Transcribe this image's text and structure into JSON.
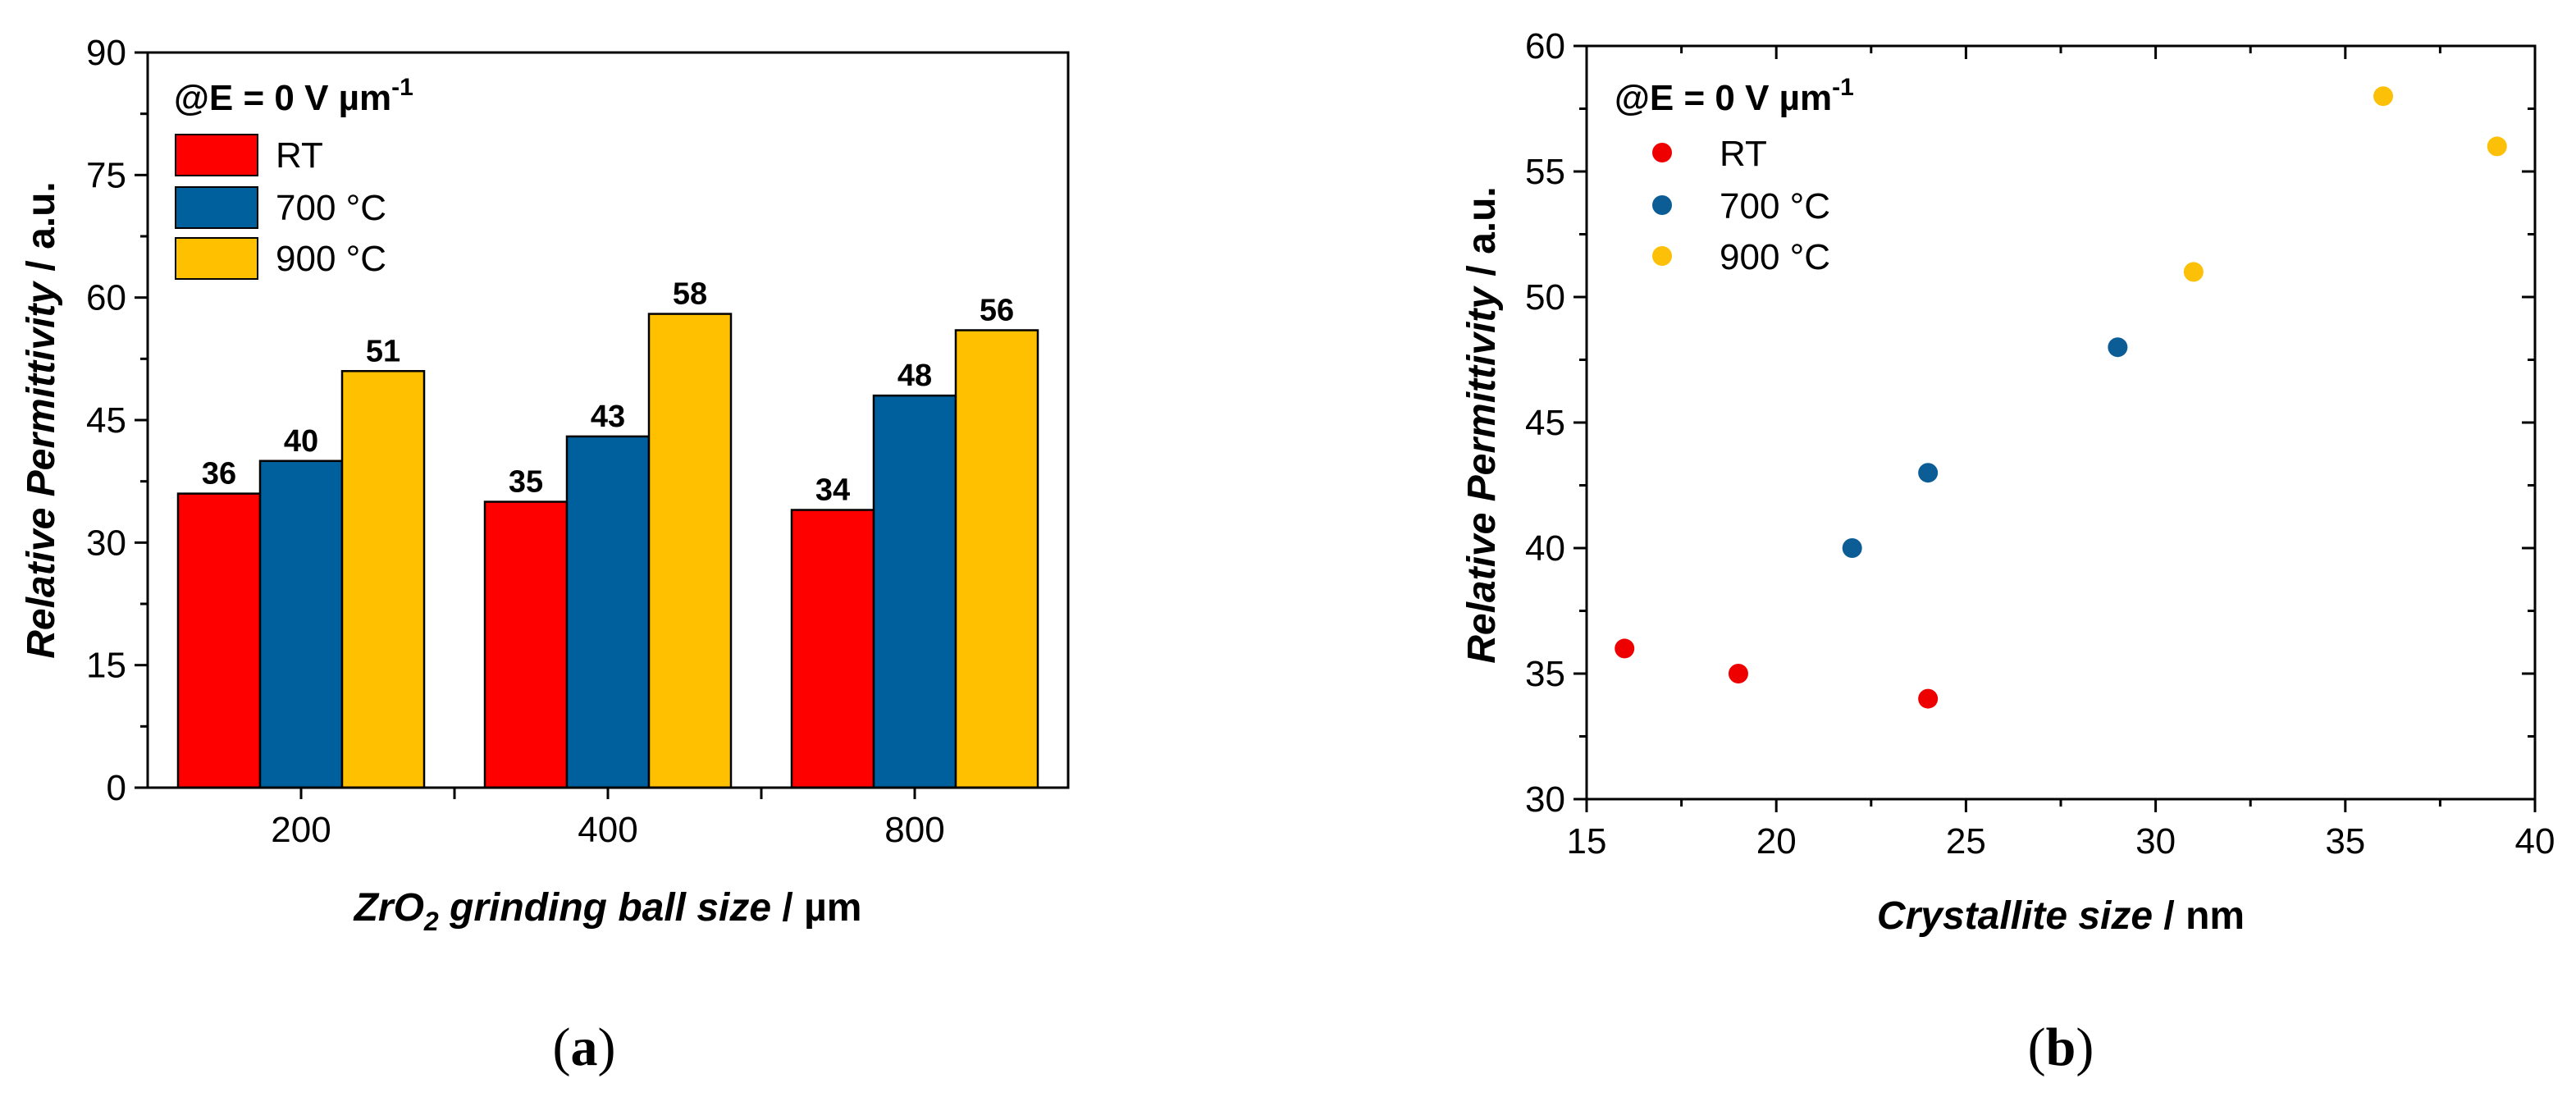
{
  "chart_data": [
    {
      "type": "bar",
      "panel_label_prefix": "(",
      "panel_label": "a",
      "panel_label_suffix": ")",
      "categories": [
        "200",
        "400",
        "800"
      ],
      "series": [
        {
          "name": "RT",
          "values": [
            36,
            35,
            34
          ],
          "color": "#ff0000"
        },
        {
          "name": "700 °C",
          "values": [
            40,
            43,
            48
          ],
          "color": "#00609d"
        },
        {
          "name": "900 °C",
          "values": [
            51,
            58,
            56
          ],
          "color": "#ffc000"
        }
      ],
      "data_labels": [
        [
          "36",
          "35",
          "34"
        ],
        [
          "40",
          "43",
          "48"
        ],
        [
          "51",
          "58",
          "56"
        ]
      ],
      "ylim": [
        0,
        90
      ],
      "yticks": [
        "0",
        "15",
        "30",
        "45",
        "60",
        "75",
        "90"
      ],
      "ylabel_italic": "Relative Permittivity",
      "ylabel_rest": " / a.u.",
      "xlabel_italic_1": "ZrO",
      "xlabel_sub": "2",
      "xlabel_italic_2": " grinding ball size",
      "xlabel_rest": " / µm",
      "legend_title_main": "@E = 0 V µm",
      "legend_title_sup": "-1",
      "legend_position": "top-left"
    },
    {
      "type": "scatter",
      "panel_label_prefix": "(",
      "panel_label": "b",
      "panel_label_suffix": ")",
      "series": [
        {
          "name": "RT",
          "color": "#ee0000",
          "points": [
            [
              16,
              36
            ],
            [
              19,
              35
            ],
            [
              24,
              34
            ]
          ]
        },
        {
          "name": "700 °C",
          "color": "#0c5d96",
          "points": [
            [
              22,
              40
            ],
            [
              24,
              43
            ],
            [
              29,
              48
            ]
          ]
        },
        {
          "name": "900 °C",
          "color": "#fcc008",
          "points": [
            [
              31,
              51
            ],
            [
              36,
              58
            ],
            [
              39,
              56
            ]
          ]
        }
      ],
      "xlim": [
        15,
        40
      ],
      "ylim": [
        30,
        60
      ],
      "xticks": [
        "15",
        "20",
        "25",
        "30",
        "35",
        "40"
      ],
      "yticks": [
        "30",
        "35",
        "40",
        "45",
        "50",
        "55",
        "60"
      ],
      "ylabel_italic": "Relative Permittivity",
      "ylabel_rest": " / a.u.",
      "xlabel_italic": "Crystallite size",
      "xlabel_rest": " / nm",
      "legend_title_main": "@E = 0 V µm",
      "legend_title_sup": "-1",
      "legend_position": "top-left"
    }
  ]
}
